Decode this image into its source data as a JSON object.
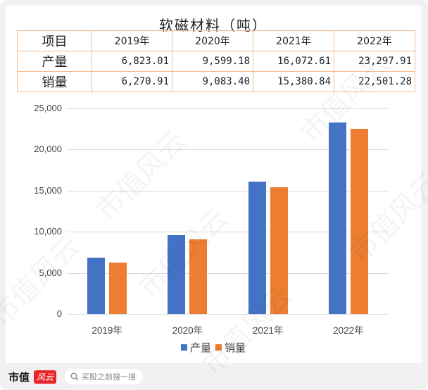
{
  "title": "软磁材料（吨）",
  "table": {
    "headers": [
      "项目",
      "2019年",
      "2020年",
      "2021年",
      "2022年"
    ],
    "rows": [
      {
        "label": "产量",
        "values": [
          "6,823.01",
          "9,599.18",
          "16,072.61",
          "23,297.91"
        ]
      },
      {
        "label": "销量",
        "values": [
          "6,270.91",
          "9,083.40",
          "15,380.84",
          "22,501.28"
        ]
      }
    ]
  },
  "chart_data": {
    "type": "bar",
    "title": "软磁材料（吨）",
    "categories": [
      "2019年",
      "2020年",
      "2021年",
      "2022年"
    ],
    "series": [
      {
        "name": "产量",
        "color": "#4472c4",
        "values": [
          6823.01,
          9599.18,
          16072.61,
          23297.91
        ]
      },
      {
        "name": "销量",
        "color": "#ed7d31",
        "values": [
          6270.91,
          9083.4,
          15380.84,
          22501.28
        ]
      }
    ],
    "xlabel": "",
    "ylabel": "",
    "ylim": [
      0,
      25000
    ],
    "yticks": [
      "25,000",
      "20,000",
      "15,000",
      "10,000",
      "5,000",
      "0"
    ],
    "grid": true,
    "legend_position": "bottom"
  },
  "legend": [
    {
      "label": "产量",
      "color": "#4472c4"
    },
    {
      "label": "销量",
      "color": "#ed7d31"
    }
  ],
  "watermark": "市值风云",
  "footer": {
    "logo_text": "市值",
    "logo_badge": "风云",
    "search_icon": "search-icon",
    "search_placeholder": "买股之前搜一搜"
  }
}
